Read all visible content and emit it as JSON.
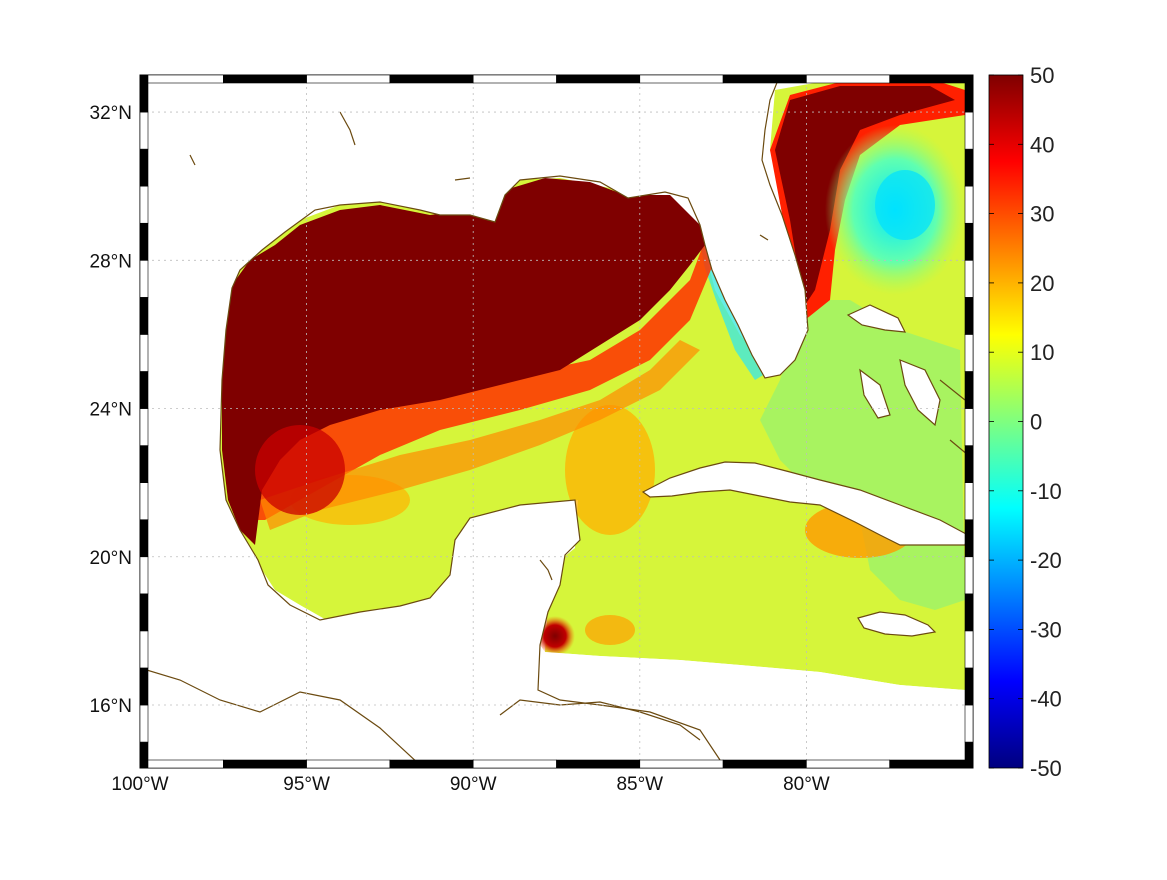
{
  "map": {
    "lon_range": [
      -100,
      -75
    ],
    "lat_range": [
      14.3,
      33
    ],
    "lon_ticks": [
      {
        "value": -100,
        "label": "100°W"
      },
      {
        "value": -95,
        "label": "95°W"
      },
      {
        "value": -90,
        "label": "90°W"
      },
      {
        "value": -85,
        "label": "85°W"
      },
      {
        "value": -80,
        "label": "80°W"
      }
    ],
    "lat_ticks": [
      {
        "value": 32,
        "label": "32°N"
      },
      {
        "value": 28,
        "label": "28°N"
      },
      {
        "value": 24,
        "label": "24°N"
      },
      {
        "value": 20,
        "label": "20°N"
      },
      {
        "value": 16,
        "label": "16°N"
      }
    ],
    "grid": true,
    "frame_style": "alternating-black-white"
  },
  "colorbar": {
    "min": -50,
    "max": 50,
    "colormap": "jet",
    "ticks": [
      50,
      40,
      30,
      20,
      10,
      0,
      -10,
      -20,
      -30,
      -40,
      -50
    ],
    "labels": [
      "50",
      "40",
      "30",
      "20",
      "10",
      "0",
      "-10",
      "-20",
      "-30",
      "-40",
      "-50"
    ]
  },
  "colors": {
    "coast": "#6b4a10",
    "saturated_high": "#7f0000",
    "grid": "#bdbdbd"
  }
}
